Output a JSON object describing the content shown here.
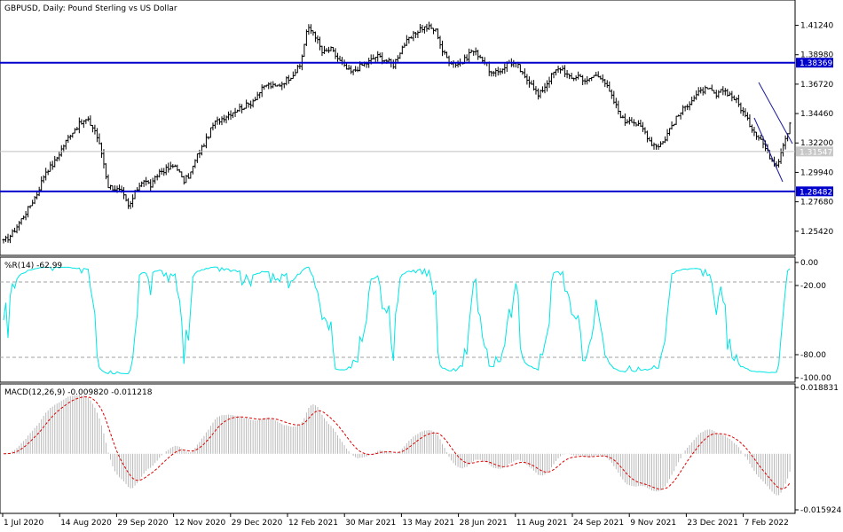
{
  "chart_data": [
    {
      "type": "candlestick",
      "title": "GBPUSD, Daily:  Pound Sterling vs US Dollar",
      "x_dates": [
        "1 Jul 2020",
        "14 Aug 2020",
        "29 Sep 2020",
        "12 Nov 2020",
        "29 Dec 2020",
        "12 Feb 2021",
        "30 Mar 2021",
        "13 May 2021",
        "28 Jun 2021",
        "11 Aug 2021",
        "24 Sep 2021",
        "9 Nov 2021",
        "23 Dec 2021",
        "7 Feb 2022"
      ],
      "y_ticks": [
        "1.41240",
        "1.38980",
        "1.36720",
        "1.34460",
        "1.32200",
        "1.29940",
        "1.27680",
        "1.25420"
      ],
      "ylim": [
        1.237,
        1.4305
      ],
      "close_path": [
        [
          0,
          1.246
        ],
        [
          6,
          1.252
        ],
        [
          12,
          1.262
        ],
        [
          18,
          1.272
        ],
        [
          24,
          1.283
        ],
        [
          30,
          1.3
        ],
        [
          36,
          1.306
        ],
        [
          42,
          1.318
        ],
        [
          48,
          1.329
        ],
        [
          54,
          1.336
        ],
        [
          60,
          1.34
        ],
        [
          66,
          1.331
        ],
        [
          71,
          1.312
        ],
        [
          75,
          1.289
        ],
        [
          80,
          1.287
        ],
        [
          85,
          1.284
        ],
        [
          90,
          1.272
        ],
        [
          95,
          1.285
        ],
        [
          100,
          1.294
        ],
        [
          106,
          1.289
        ],
        [
          112,
          1.3
        ],
        [
          118,
          1.302
        ],
        [
          124,
          1.305
        ],
        [
          129,
          1.292
        ],
        [
          134,
          1.298
        ],
        [
          139,
          1.312
        ],
        [
          145,
          1.323
        ],
        [
          151,
          1.337
        ],
        [
          157,
          1.341
        ],
        [
          163,
          1.345
        ],
        [
          170,
          1.349
        ],
        [
          177,
          1.352
        ],
        [
          183,
          1.36
        ],
        [
          189,
          1.367
        ],
        [
          195,
          1.365
        ],
        [
          200,
          1.368
        ],
        [
          207,
          1.374
        ],
        [
          213,
          1.381
        ],
        [
          218,
          1.41
        ],
        [
          223,
          1.407
        ],
        [
          229,
          1.391
        ],
        [
          235,
          1.394
        ],
        [
          240,
          1.387
        ],
        [
          245,
          1.38
        ],
        [
          250,
          1.376
        ],
        [
          256,
          1.381
        ],
        [
          262,
          1.384
        ],
        [
          268,
          1.389
        ],
        [
          274,
          1.386
        ],
        [
          280,
          1.382
        ],
        [
          287,
          1.397
        ],
        [
          293,
          1.403
        ],
        [
          299,
          1.41
        ],
        [
          305,
          1.411
        ],
        [
          311,
          1.408
        ],
        [
          315,
          1.393
        ],
        [
          320,
          1.385
        ],
        [
          325,
          1.383
        ],
        [
          330,
          1.384
        ],
        [
          336,
          1.393
        ],
        [
          341,
          1.39
        ],
        [
          346,
          1.384
        ],
        [
          351,
          1.374
        ],
        [
          357,
          1.378
        ],
        [
          363,
          1.384
        ],
        [
          369,
          1.382
        ],
        [
          374,
          1.372
        ],
        [
          379,
          1.369
        ],
        [
          384,
          1.358
        ],
        [
          389,
          1.366
        ],
        [
          395,
          1.376
        ],
        [
          401,
          1.38
        ],
        [
          407,
          1.371
        ],
        [
          413,
          1.374
        ],
        [
          419,
          1.369
        ],
        [
          424,
          1.374
        ],
        [
          430,
          1.373
        ],
        [
          436,
          1.359
        ],
        [
          441,
          1.348
        ],
        [
          446,
          1.338
        ],
        [
          450,
          1.341
        ],
        [
          455,
          1.336
        ],
        [
          460,
          1.332
        ],
        [
          465,
          1.322
        ],
        [
          470,
          1.32
        ],
        [
          474,
          1.323
        ],
        [
          479,
          1.334
        ],
        [
          484,
          1.342
        ],
        [
          489,
          1.349
        ],
        [
          494,
          1.355
        ],
        [
          499,
          1.36
        ],
        [
          503,
          1.363
        ],
        [
          508,
          1.362
        ],
        [
          512,
          1.358
        ],
        [
          517,
          1.363
        ],
        [
          522,
          1.359
        ],
        [
          526,
          1.355
        ],
        [
          531,
          1.346
        ],
        [
          536,
          1.336
        ],
        [
          540,
          1.33
        ],
        [
          544,
          1.325
        ],
        [
          548,
          1.316
        ],
        [
          552,
          1.309
        ],
        [
          556,
          1.306
        ],
        [
          560,
          1.322
        ],
        [
          563,
          1.33
        ],
        [
          566,
          1.343
        ]
      ],
      "support_level": "1.28482",
      "resistance_level": "1.38369",
      "current_price": "1.31547"
    },
    {
      "type": "line",
      "title": "%R(14) -62.99",
      "y_ticks": [
        "0.00",
        "-20.00",
        "-80.00",
        "-100.00"
      ],
      "ylim": [
        -100,
        0
      ],
      "levels": [
        -20,
        -80
      ],
      "series": [
        {
          "name": "%R(14)",
          "color": "#00e5e5"
        }
      ]
    },
    {
      "type": "bar",
      "title": "MACD(12,26,9) -0.009820 -0.011218",
      "y_ticks": [
        "0.018831",
        "-0.015924"
      ],
      "ylim": [
        -0.015924,
        0.018831
      ],
      "series": [
        {
          "name": "MACD",
          "color": "#c0c0c0"
        },
        {
          "name": "Signal",
          "color": "#dd0000"
        }
      ]
    }
  ]
}
